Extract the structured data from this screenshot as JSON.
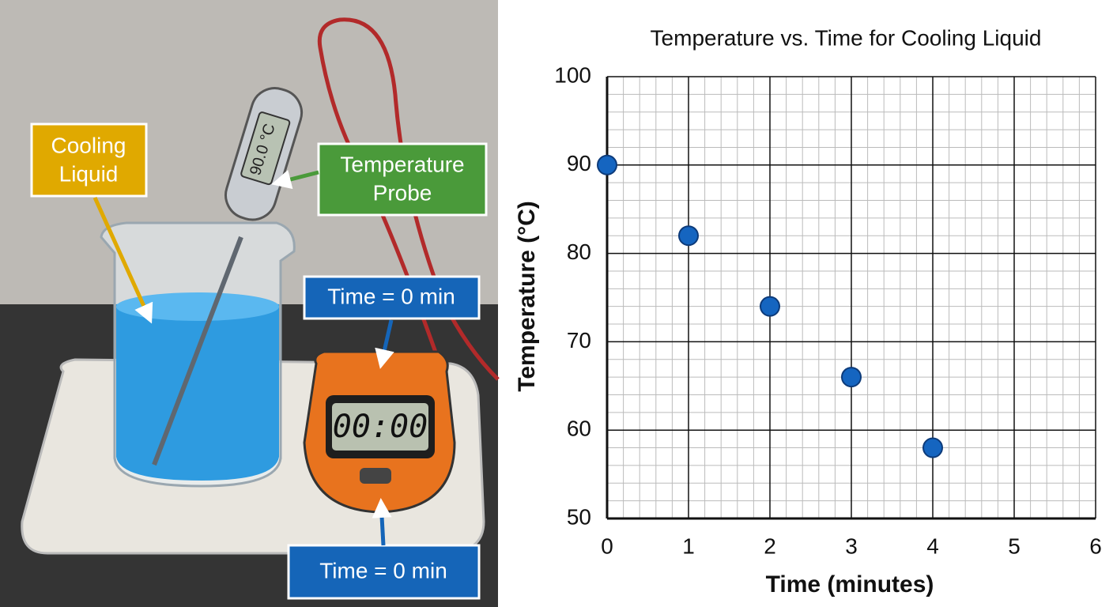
{
  "illustration": {
    "liquid_label": [
      "Cooling",
      "Liquid"
    ],
    "probe_label": [
      "Temperature",
      "Probe"
    ],
    "probe_display": "90.0 °C",
    "timer_label_top": "Time = 0 min",
    "timer_label_bottom": "Time = 0 min",
    "stopwatch_display": "00:00"
  },
  "chart_data": {
    "type": "scatter",
    "title": "Temperature vs. Time for Cooling Liquid",
    "x_label": "Time (minutes)",
    "y_label": "Temperature (°C)",
    "x": [
      0,
      1,
      2,
      3,
      4
    ],
    "values": [
      90,
      82,
      74,
      66,
      58
    ],
    "color": "#1565c0",
    "xlim": [
      0,
      6
    ],
    "xticks": [
      0,
      1,
      2,
      3,
      4,
      5,
      6
    ],
    "ylim": [
      50,
      100
    ],
    "yticks": [
      50,
      60,
      70,
      80,
      90,
      100
    ],
    "grid": true,
    "minor_grid": true
  }
}
